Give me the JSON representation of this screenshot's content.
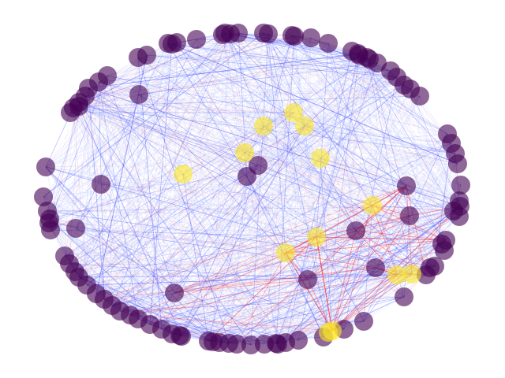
{
  "colors": {
    "background": "#ffffff",
    "edge_blue": "#3f4fff",
    "edge_red": "#ff3030",
    "node_purple": "#440154",
    "node_yellow": "#fde725"
  },
  "graph": {
    "type": "network",
    "layout": "circular-with-interior-nodes",
    "node_classes": [
      "purple",
      "yellow"
    ],
    "node_count_purple": 98,
    "node_count_yellow": 13,
    "edge_colors": [
      "blue",
      "red"
    ]
  }
}
